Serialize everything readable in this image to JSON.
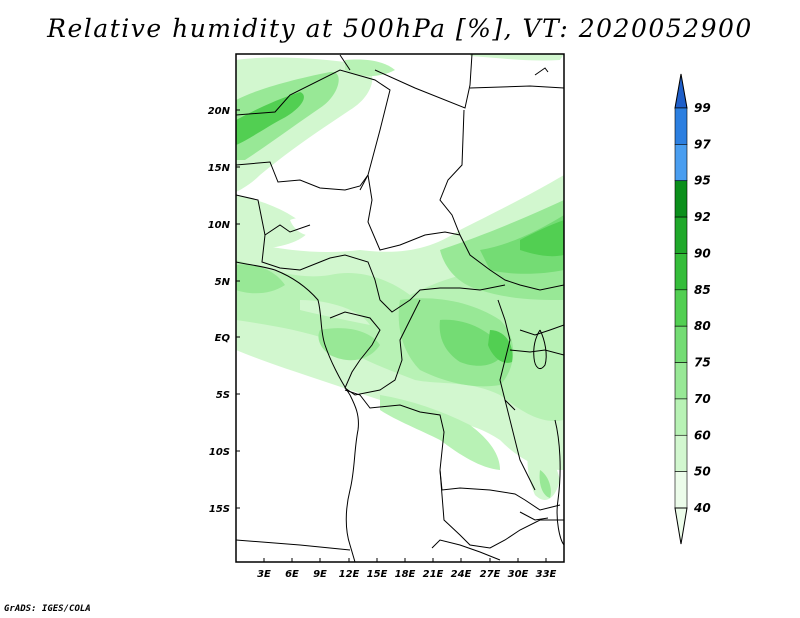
{
  "title": "Relative humidity at 500hPa [%], VT: 2020052900",
  "credit": "GrADS: IGES/COLA",
  "lat_labels": [
    "20N",
    "15N",
    "10N",
    "5N",
    "EQ",
    "5S",
    "10S",
    "15S"
  ],
  "lon_labels": [
    "3E",
    "6E",
    "9E",
    "12E",
    "15E",
    "18E",
    "21E",
    "24E",
    "27E",
    "30E",
    "33E"
  ],
  "colorbar": {
    "labels": [
      "99",
      "97",
      "95",
      "92",
      "90",
      "85",
      "80",
      "75",
      "70",
      "60",
      "50",
      "40"
    ],
    "colors": [
      "#1f5fc9",
      "#2c7fe0",
      "#4a9ef0",
      "#0b8f1b",
      "#1fa82a",
      "#35bd3a",
      "#52cf52",
      "#74dc74",
      "#98e896",
      "#b8f2b5",
      "#d2f7cf",
      "#ecfcea"
    ]
  }
}
